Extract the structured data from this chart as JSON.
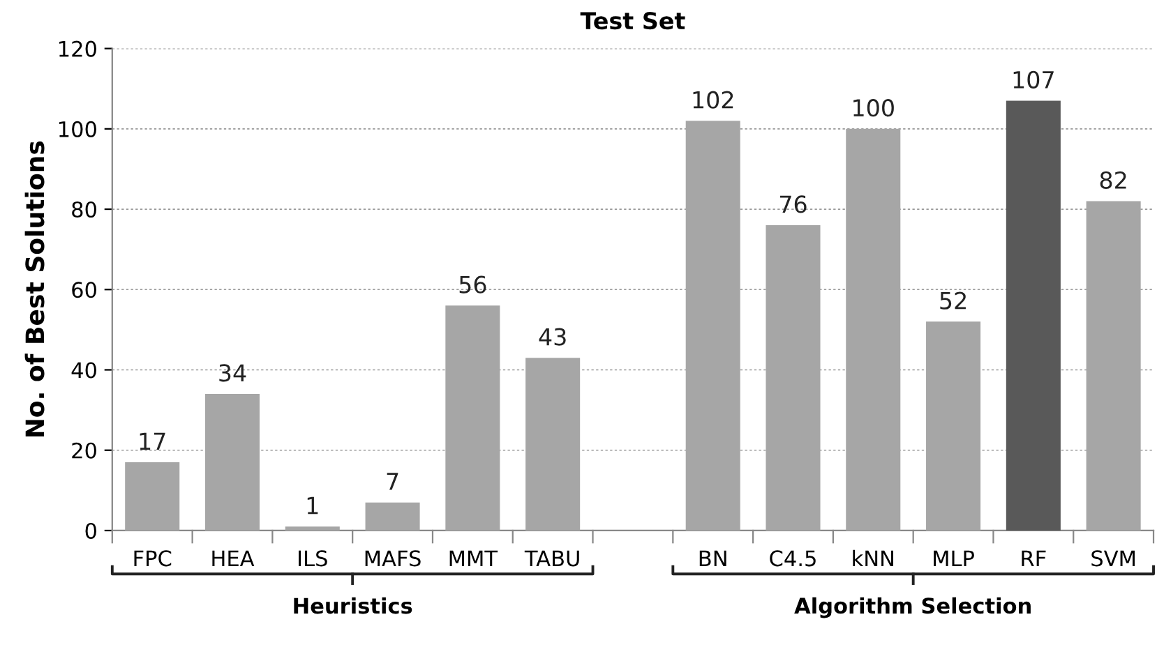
{
  "chart_data": {
    "type": "bar",
    "title": "Test Set",
    "ylabel": "No. of Best Solutions",
    "categories": [
      "FPC",
      "HEA",
      "ILS",
      "MAFS",
      "MMT",
      "TABU",
      null,
      "BN",
      "C4.5",
      "kNN",
      "MLP",
      "RF",
      "SVM"
    ],
    "values": [
      17,
      34,
      1,
      7,
      56,
      43,
      null,
      102,
      76,
      100,
      52,
      107,
      82
    ],
    "colors": [
      "#a6a6a6",
      "#a6a6a6",
      "#a6a6a6",
      "#a6a6a6",
      "#a6a6a6",
      "#a6a6a6",
      "#a6a6a6",
      "#a6a6a6",
      "#a6a6a6",
      "#a6a6a6",
      "#a6a6a6",
      "#595959",
      "#a6a6a6"
    ],
    "ylim": [
      0,
      120
    ],
    "yticks": [
      0,
      20,
      40,
      60,
      80,
      100,
      120
    ],
    "grid": "y",
    "data_labels": true,
    "legend": false,
    "annotations": [
      "Heuristics",
      "Algorithm Selection"
    ]
  }
}
